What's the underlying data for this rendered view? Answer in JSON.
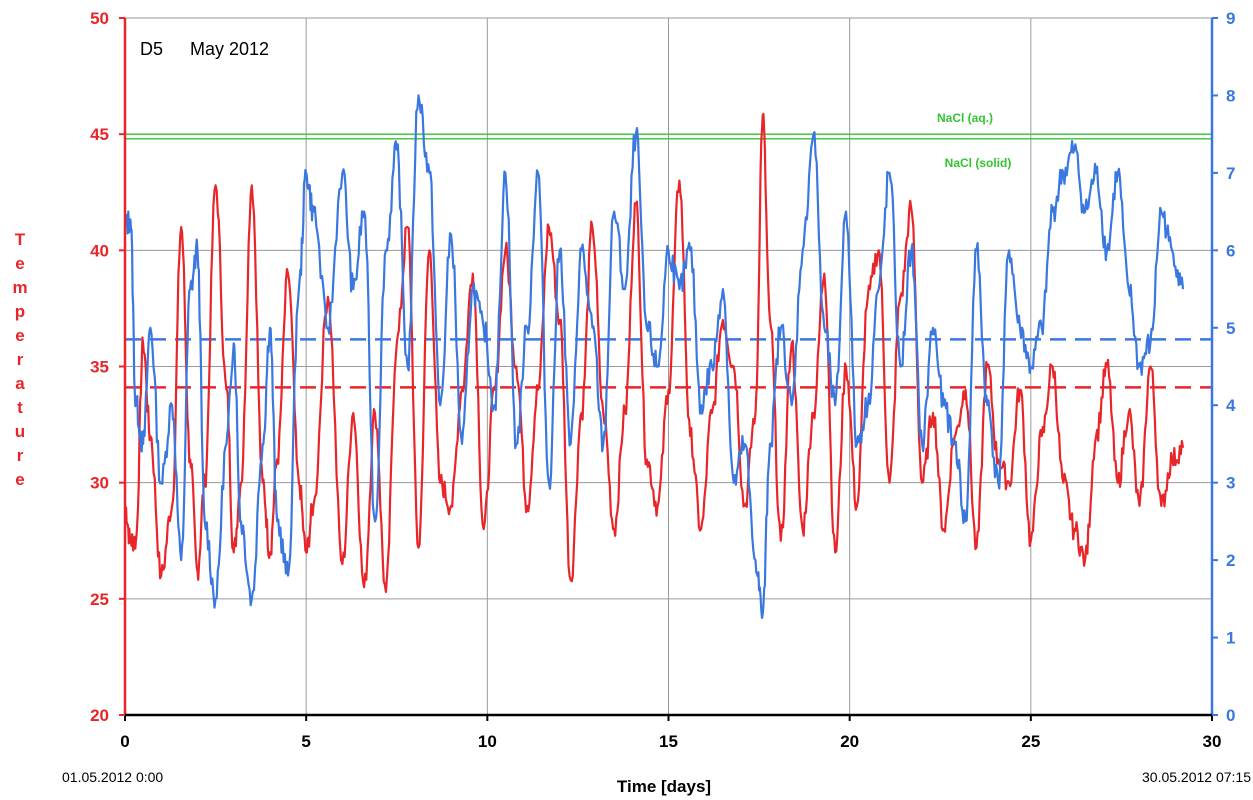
{
  "chart_data": {
    "type": "line",
    "title": "D5",
    "subtitle": "May 2012",
    "xlabel": "Time [days]",
    "ylabel": "Temperature",
    "xlim": [
      0,
      30
    ],
    "ylim_left": [
      20,
      50
    ],
    "ylim_right": [
      0,
      9
    ],
    "xticks": [
      "0",
      "5",
      "10",
      "15",
      "20",
      "25",
      "30"
    ],
    "yticks_left": [
      "20",
      "25",
      "30",
      "35",
      "40",
      "45",
      "50"
    ],
    "yticks_right": [
      "0",
      "1",
      "2",
      "3",
      "4",
      "5",
      "6",
      "7",
      "8",
      "9"
    ],
    "start_date_label": "01.05.2012  0:00",
    "end_date_label": "30.05.2012 07:15",
    "grid": true,
    "colors": {
      "temperature": "#e8262a",
      "right_series": "#3a78e0",
      "nacl": "#34c431",
      "grid": "#9a9a9a"
    },
    "reference_lines": [
      {
        "label": "NaCl (aq.)",
        "axis": "left",
        "value": 45,
        "color": "#34c431"
      },
      {
        "label": "NaCl (solid)",
        "axis": "left",
        "value": 44.8,
        "color": "#34c431"
      },
      {
        "label": "",
        "axis": "left",
        "value": 34.1,
        "color": "#e8262a",
        "dashed": true
      },
      {
        "label": "",
        "axis": "right",
        "value": 4.85,
        "color": "#3a78e0",
        "dashed": true
      }
    ],
    "series": [
      {
        "axis": "left",
        "color": "#e8262a",
        "x": [
          0,
          0.15,
          0.3,
          0.5,
          0.7,
          1.0,
          1.3,
          1.55,
          1.8,
          2.0,
          2.2,
          2.5,
          2.8,
          3.0,
          3.2,
          3.5,
          3.8,
          4.0,
          4.2,
          4.5,
          4.8,
          5.0,
          5.2,
          5.6,
          6.0,
          6.3,
          6.6,
          6.9,
          7.2,
          7.5,
          7.8,
          8.1,
          8.4,
          8.7,
          9.0,
          9.3,
          9.6,
          9.9,
          10.2,
          10.5,
          10.8,
          11.1,
          11.4,
          11.7,
          12.0,
          12.3,
          12.6,
          12.9,
          13.2,
          13.5,
          13.8,
          14.1,
          14.4,
          14.7,
          15.0,
          15.3,
          15.6,
          15.9,
          16.2,
          16.5,
          16.8,
          17.1,
          17.4,
          17.6,
          17.8,
          18.1,
          18.4,
          18.7,
          19.0,
          19.3,
          19.6,
          19.9,
          20.2,
          20.5,
          20.8,
          21.1,
          21.4,
          21.7,
          22.0,
          22.3,
          22.6,
          22.9,
          23.2,
          23.5,
          23.8,
          24.1,
          24.4,
          24.7,
          25.0,
          25.3,
          25.6,
          25.9,
          26.2,
          26.5,
          26.8,
          27.1,
          27.4,
          27.7,
          28.0,
          28.3,
          28.6,
          28.9,
          29.2
        ],
        "values": [
          29,
          27.5,
          27.5,
          36,
          32,
          26,
          29,
          41,
          31,
          26.2,
          30,
          42.8,
          34,
          27,
          30,
          42.8,
          30,
          27,
          31,
          39,
          30,
          27,
          29,
          38,
          26.5,
          33,
          25.5,
          33,
          25.3,
          36,
          41,
          27.2,
          40,
          30,
          29,
          34,
          39,
          28,
          34,
          40,
          35,
          29,
          34,
          41,
          37,
          25.8,
          33,
          41,
          33,
          28,
          33,
          42,
          31,
          29,
          34,
          43,
          32,
          28,
          33,
          37,
          35,
          29,
          33,
          45.8,
          37,
          27.5,
          36,
          28,
          33,
          39,
          27,
          35,
          29,
          38,
          40,
          30,
          38,
          41.8,
          30,
          33,
          28,
          32,
          34,
          27.2,
          35,
          31,
          30,
          34,
          27.5,
          32,
          35,
          30,
          28,
          26.7,
          32,
          35,
          30,
          33,
          29,
          35,
          29,
          31,
          31.5
        ]
      },
      {
        "axis": "right",
        "color": "#3a78e0",
        "x": [
          0,
          0.15,
          0.3,
          0.5,
          0.7,
          1.0,
          1.3,
          1.55,
          1.8,
          2.0,
          2.2,
          2.5,
          2.8,
          3.0,
          3.2,
          3.5,
          3.8,
          4.0,
          4.2,
          4.5,
          4.8,
          5.0,
          5.2,
          5.6,
          6.0,
          6.3,
          6.6,
          6.9,
          7.2,
          7.5,
          7.8,
          8.1,
          8.4,
          8.7,
          9.0,
          9.3,
          9.6,
          9.9,
          10.2,
          10.5,
          10.8,
          11.1,
          11.4,
          11.7,
          12.0,
          12.3,
          12.6,
          12.9,
          13.2,
          13.5,
          13.8,
          14.1,
          14.4,
          14.7,
          15.0,
          15.3,
          15.6,
          15.9,
          16.2,
          16.5,
          16.8,
          17.1,
          17.4,
          17.6,
          17.8,
          18.1,
          18.4,
          18.7,
          19.0,
          19.3,
          19.6,
          19.9,
          20.2,
          20.5,
          20.8,
          21.1,
          21.4,
          21.7,
          22.0,
          22.3,
          22.6,
          22.9,
          23.2,
          23.5,
          23.8,
          24.1,
          24.4,
          24.7,
          25.0,
          25.3,
          25.6,
          25.9,
          26.2,
          26.5,
          26.8,
          27.1,
          27.4,
          27.7,
          28.0,
          28.3,
          28.6,
          28.9,
          29.2
        ],
        "values": [
          6.3,
          6.4,
          4.0,
          3.5,
          5.0,
          3.0,
          4.0,
          2.0,
          5.5,
          6.0,
          2.5,
          1.5,
          3.5,
          4.8,
          2.5,
          1.5,
          3.5,
          5.0,
          2.5,
          1.8,
          5.5,
          7.0,
          6.5,
          5.0,
          7.0,
          5.5,
          6.5,
          2.5,
          6.0,
          7.3,
          4.5,
          8.0,
          7.0,
          4.0,
          6.2,
          3.5,
          5.5,
          5.0,
          4.0,
          7.0,
          3.5,
          5.0,
          7.0,
          3.0,
          6.0,
          3.5,
          6.0,
          5.0,
          3.5,
          6.5,
          5.5,
          7.5,
          5.0,
          4.5,
          6.0,
          5.5,
          6.0,
          4.0,
          4.5,
          5.5,
          3.0,
          3.5,
          2.0,
          1.3,
          3.5,
          5.0,
          4.0,
          6.0,
          7.5,
          5.0,
          4.0,
          6.5,
          3.5,
          4.0,
          5.5,
          7.0,
          4.5,
          6.0,
          3.5,
          5.0,
          4.0,
          3.5,
          2.5,
          6.0,
          4.0,
          3.0,
          6.0,
          5.0,
          4.5,
          5.0,
          6.5,
          7.0,
          7.3,
          6.5,
          7.0,
          6.0,
          7.0,
          5.5,
          4.5,
          4.8,
          6.5,
          6.0,
          5.5
        ]
      }
    ]
  }
}
